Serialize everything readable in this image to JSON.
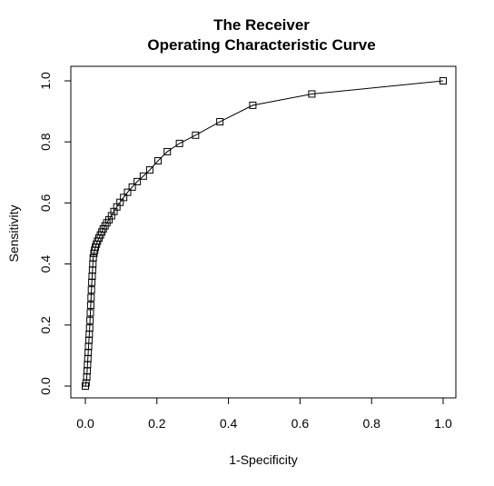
{
  "chart_data": {
    "type": "line",
    "title": "The Receiver\nOperating Characteristic Curve",
    "title_lines": [
      "The Receiver",
      "Operating Characteristic Curve"
    ],
    "xlabel": "1-Specificity",
    "ylabel": "Sensitivity",
    "xlim": [
      0,
      1
    ],
    "ylim": [
      0,
      1
    ],
    "x_ticks": [
      "0.0",
      "0.2",
      "0.4",
      "0.6",
      "0.8",
      "1.0"
    ],
    "y_ticks": [
      "0.0",
      "0.2",
      "0.4",
      "0.6",
      "0.8",
      "1.0"
    ],
    "grid": false,
    "marker": "square",
    "series": [
      {
        "x": [
          0.0,
          0.002,
          0.004,
          0.005,
          0.006,
          0.007,
          0.008,
          0.009,
          0.01,
          0.011,
          0.012,
          0.013,
          0.014,
          0.015,
          0.016,
          0.017,
          0.018,
          0.019,
          0.02,
          0.021,
          0.022,
          0.024,
          0.026,
          0.028,
          0.031,
          0.034,
          0.038,
          0.042,
          0.046,
          0.05,
          0.055,
          0.06,
          0.066,
          0.073,
          0.08,
          0.088,
          0.097,
          0.107,
          0.118,
          0.131,
          0.145,
          0.162,
          0.18,
          0.203,
          0.229,
          0.263,
          0.308,
          0.376,
          0.468,
          0.633,
          1.0
        ],
        "y": [
          0.0,
          0.01,
          0.03,
          0.05,
          0.07,
          0.09,
          0.11,
          0.13,
          0.15,
          0.17,
          0.19,
          0.215,
          0.24,
          0.265,
          0.29,
          0.315,
          0.34,
          0.36,
          0.38,
          0.4,
          0.42,
          0.435,
          0.445,
          0.455,
          0.465,
          0.475,
          0.485,
          0.495,
          0.505,
          0.515,
          0.525,
          0.535,
          0.545,
          0.558,
          0.572,
          0.587,
          0.602,
          0.618,
          0.635,
          0.652,
          0.67,
          0.688,
          0.708,
          0.738,
          0.768,
          0.795,
          0.822,
          0.866,
          0.92,
          0.957,
          1.0
        ]
      }
    ]
  }
}
